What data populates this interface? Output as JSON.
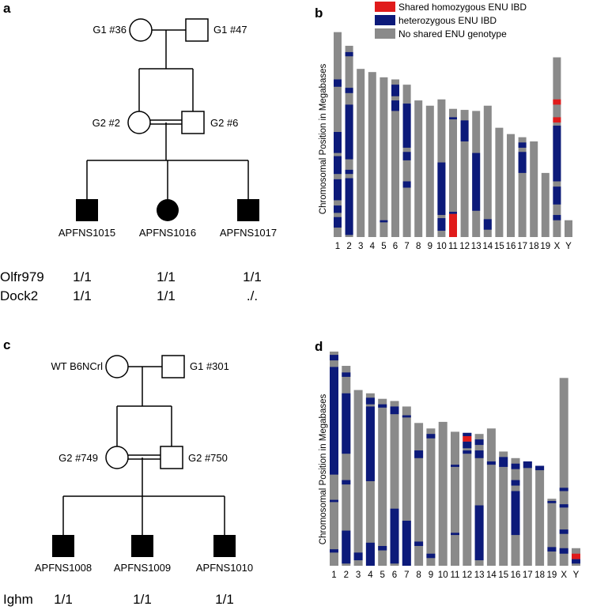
{
  "panels": {
    "a": {
      "letter": "a",
      "g1_female": "G1 #36",
      "g1_male": "G1 #47",
      "g2_female": "G2 #2",
      "g2_male": "G2 #6",
      "offspring": [
        "APFNS1015",
        "APFNS1016",
        "APFNS1017"
      ],
      "genotypes": [
        {
          "gene": "Olfr979",
          "values": [
            "1/1",
            "1/1",
            "1/1"
          ]
        },
        {
          "gene": "Dock2",
          "values": [
            "1/1",
            "1/1",
            "./."
          ]
        }
      ]
    },
    "c": {
      "letter": "c",
      "g1_female": "WT B6NCrl",
      "g1_male": "G1 #301",
      "g2_female": "G2 #749",
      "g2_male": "G2 #750",
      "offspring": [
        "APFNS1008",
        "APFNS1009",
        "APFNS1010"
      ],
      "genotypes": [
        {
          "gene": "Ighm",
          "values": [
            "1/1",
            "1/1",
            "1/1"
          ]
        }
      ]
    }
  },
  "legend": {
    "items": [
      {
        "label": "Shared homozygous ENU IBD",
        "color": "#e01b1b"
      },
      {
        "label": "heterozygous ENU IBD",
        "color": "#0c1a7a"
      },
      {
        "label": "No shared ENU genotype",
        "color": "#8a8a8a"
      }
    ]
  },
  "colors": {
    "gray": "#8a8a8a",
    "blue": "#0c1a7a",
    "red": "#e01b1b"
  },
  "chart_data": [
    {
      "type": "bar",
      "panel": "b",
      "title": "",
      "ylabel": "Chromosomal Position in Megabases",
      "categories": [
        "1",
        "2",
        "3",
        "4",
        "5",
        "6",
        "7",
        "8",
        "9",
        "10",
        "11",
        "12",
        "13",
        "14",
        "15",
        "16",
        "17",
        "18",
        "19",
        "X",
        "Y"
      ],
      "lengths_mb": [
        195,
        182,
        160,
        157,
        152,
        150,
        145,
        130,
        125,
        131,
        122,
        121,
        120,
        125,
        104,
        98,
        95,
        91,
        61,
        171,
        16
      ],
      "segments": [
        {
          "chr": "1",
          "start": 45,
          "end": 52,
          "state": "het"
        },
        {
          "chr": "1",
          "start": 95,
          "end": 115,
          "state": "het"
        },
        {
          "chr": "1",
          "start": 118,
          "end": 135,
          "state": "het"
        },
        {
          "chr": "1",
          "start": 140,
          "end": 160,
          "state": "het"
        },
        {
          "chr": "1",
          "start": 165,
          "end": 172,
          "state": "het"
        },
        {
          "chr": "1",
          "start": 176,
          "end": 186,
          "state": "het"
        },
        {
          "chr": "2",
          "start": 6,
          "end": 10,
          "state": "het"
        },
        {
          "chr": "2",
          "start": 40,
          "end": 45,
          "state": "het"
        },
        {
          "chr": "2",
          "start": 56,
          "end": 108,
          "state": "het"
        },
        {
          "chr": "2",
          "start": 118,
          "end": 122,
          "state": "het"
        },
        {
          "chr": "2",
          "start": 126,
          "end": 180,
          "state": "het"
        },
        {
          "chr": "5",
          "start": 136,
          "end": 138,
          "state": "het"
        },
        {
          "chr": "6",
          "start": 5,
          "end": 16,
          "state": "het"
        },
        {
          "chr": "6",
          "start": 20,
          "end": 30,
          "state": "het"
        },
        {
          "chr": "7",
          "start": 18,
          "end": 60,
          "state": "het"
        },
        {
          "chr": "7",
          "start": 64,
          "end": 72,
          "state": "het"
        },
        {
          "chr": "7",
          "start": 92,
          "end": 98,
          "state": "het"
        },
        {
          "chr": "10",
          "start": 60,
          "end": 110,
          "state": "het"
        },
        {
          "chr": "10",
          "start": 113,
          "end": 125,
          "state": "het"
        },
        {
          "chr": "11",
          "start": 8,
          "end": 10,
          "state": "het"
        },
        {
          "chr": "11",
          "start": 98,
          "end": 100,
          "state": "het"
        },
        {
          "chr": "11",
          "start": 100,
          "end": 122,
          "state": "hom"
        },
        {
          "chr": "12",
          "start": 10,
          "end": 30,
          "state": "het"
        },
        {
          "chr": "13",
          "start": 40,
          "end": 95,
          "state": "het"
        },
        {
          "chr": "14",
          "start": 108,
          "end": 118,
          "state": "het"
        },
        {
          "chr": "17",
          "start": 5,
          "end": 10,
          "state": "het"
        },
        {
          "chr": "17",
          "start": 14,
          "end": 34,
          "state": "het"
        },
        {
          "chr": "X",
          "start": 40,
          "end": 45,
          "state": "hom"
        },
        {
          "chr": "X",
          "start": 57,
          "end": 62,
          "state": "hom"
        },
        {
          "chr": "X",
          "start": 65,
          "end": 118,
          "state": "het"
        },
        {
          "chr": "X",
          "start": 123,
          "end": 140,
          "state": "het"
        },
        {
          "chr": "X",
          "start": 150,
          "end": 155,
          "state": "het"
        }
      ]
    },
    {
      "type": "bar",
      "panel": "d",
      "title": "",
      "ylabel": "Chromosomal Position in Megabases",
      "categories": [
        "1",
        "2",
        "3",
        "4",
        "5",
        "6",
        "7",
        "8",
        "9",
        "10",
        "11",
        "12",
        "13",
        "14",
        "15",
        "16",
        "17",
        "18",
        "19",
        "X",
        "Y"
      ],
      "lengths_mb": [
        195,
        182,
        160,
        157,
        152,
        150,
        145,
        130,
        125,
        131,
        122,
        121,
        120,
        125,
        104,
        98,
        95,
        91,
        61,
        171,
        16
      ],
      "segments": [
        {
          "chr": "1",
          "start": 3,
          "end": 8,
          "state": "het"
        },
        {
          "chr": "1",
          "start": 14,
          "end": 112,
          "state": "het"
        },
        {
          "chr": "1",
          "start": 135,
          "end": 137,
          "state": "het"
        },
        {
          "chr": "1",
          "start": 180,
          "end": 183,
          "state": "het"
        },
        {
          "chr": "2",
          "start": 6,
          "end": 10,
          "state": "het"
        },
        {
          "chr": "2",
          "start": 25,
          "end": 80,
          "state": "het"
        },
        {
          "chr": "2",
          "start": 104,
          "end": 108,
          "state": "het"
        },
        {
          "chr": "2",
          "start": 150,
          "end": 180,
          "state": "het"
        },
        {
          "chr": "3",
          "start": 148,
          "end": 155,
          "state": "het"
        },
        {
          "chr": "4",
          "start": 4,
          "end": 10,
          "state": "het"
        },
        {
          "chr": "4",
          "start": 12,
          "end": 80,
          "state": "het"
        },
        {
          "chr": "4",
          "start": 136,
          "end": 157,
          "state": "het"
        },
        {
          "chr": "5",
          "start": 5,
          "end": 8,
          "state": "het"
        },
        {
          "chr": "5",
          "start": 134,
          "end": 138,
          "state": "het"
        },
        {
          "chr": "6",
          "start": 5,
          "end": 12,
          "state": "het"
        },
        {
          "chr": "6",
          "start": 98,
          "end": 148,
          "state": "het"
        },
        {
          "chr": "7",
          "start": 8,
          "end": 10,
          "state": "het"
        },
        {
          "chr": "7",
          "start": 104,
          "end": 145,
          "state": "het"
        },
        {
          "chr": "8",
          "start": 25,
          "end": 32,
          "state": "het"
        },
        {
          "chr": "8",
          "start": 108,
          "end": 112,
          "state": "het"
        },
        {
          "chr": "9",
          "start": 5,
          "end": 9,
          "state": "het"
        },
        {
          "chr": "9",
          "start": 114,
          "end": 118,
          "state": "het"
        },
        {
          "chr": "11",
          "start": 30,
          "end": 32,
          "state": "het"
        },
        {
          "chr": "11",
          "start": 92,
          "end": 94,
          "state": "het"
        },
        {
          "chr": "12",
          "start": 0,
          "end": 3,
          "state": "het"
        },
        {
          "chr": "12",
          "start": 3,
          "end": 8,
          "state": "hom"
        },
        {
          "chr": "12",
          "start": 8,
          "end": 14,
          "state": "het"
        },
        {
          "chr": "12",
          "start": 16,
          "end": 19,
          "state": "het"
        },
        {
          "chr": "13",
          "start": 5,
          "end": 10,
          "state": "het"
        },
        {
          "chr": "13",
          "start": 15,
          "end": 22,
          "state": "het"
        },
        {
          "chr": "13",
          "start": 65,
          "end": 115,
          "state": "het"
        },
        {
          "chr": "14",
          "start": 30,
          "end": 33,
          "state": "het"
        },
        {
          "chr": "15",
          "start": 5,
          "end": 14,
          "state": "het"
        },
        {
          "chr": "16",
          "start": 5,
          "end": 10,
          "state": "het"
        },
        {
          "chr": "16",
          "start": 20,
          "end": 25,
          "state": "het"
        },
        {
          "chr": "16",
          "start": 30,
          "end": 70,
          "state": "het"
        },
        {
          "chr": "17",
          "start": 0,
          "end": 6,
          "state": "het"
        },
        {
          "chr": "18",
          "start": 0,
          "end": 4,
          "state": "het"
        },
        {
          "chr": "19",
          "start": 2,
          "end": 4,
          "state": "het"
        },
        {
          "chr": "19",
          "start": 44,
          "end": 48,
          "state": "het"
        },
        {
          "chr": "X",
          "start": 100,
          "end": 103,
          "state": "het"
        },
        {
          "chr": "X",
          "start": 115,
          "end": 118,
          "state": "het"
        },
        {
          "chr": "X",
          "start": 138,
          "end": 142,
          "state": "het"
        },
        {
          "chr": "X",
          "start": 155,
          "end": 160,
          "state": "het"
        },
        {
          "chr": "Y",
          "start": 5,
          "end": 10,
          "state": "hom"
        },
        {
          "chr": "Y",
          "start": 10,
          "end": 14,
          "state": "het"
        }
      ]
    }
  ]
}
